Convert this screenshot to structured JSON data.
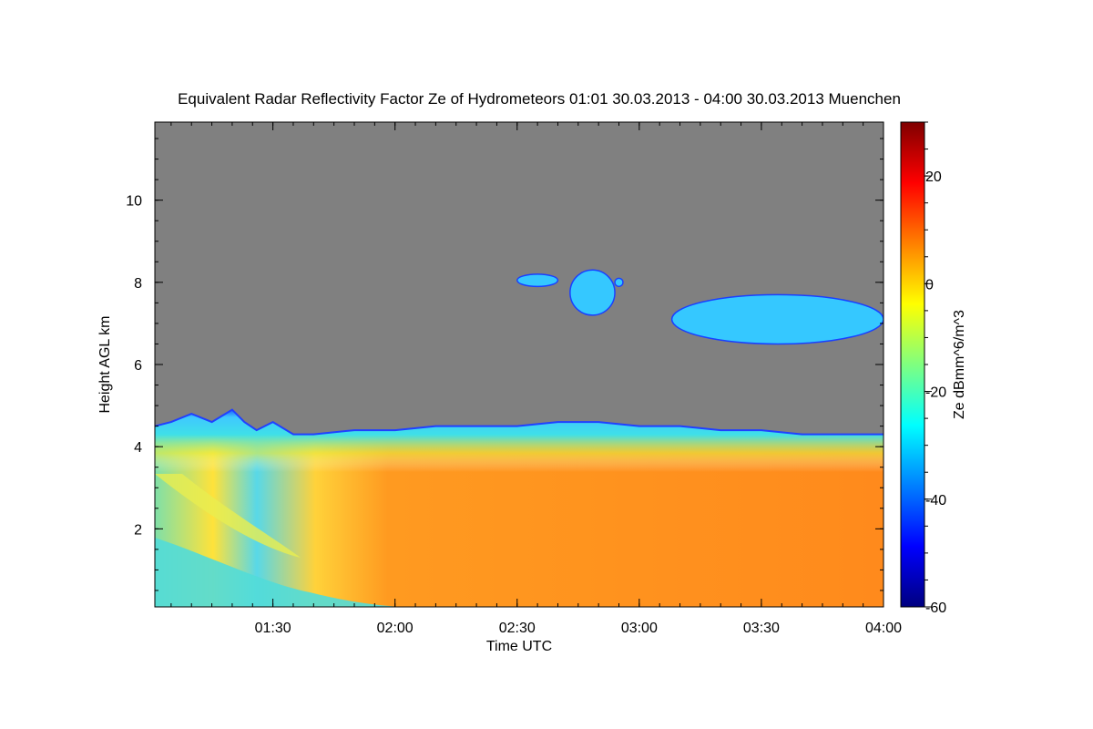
{
  "chart_data": {
    "type": "heatmap",
    "title": "Equivalent Radar Reflectivity Factor Ze of Hydrometeors   01:01 30.03.2013 - 04:00 30.03.2013 Muenchen",
    "xlabel": "Time UTC",
    "ylabel": "Height AGL km",
    "x_range_minutes": [
      61,
      240
    ],
    "x_ticks": [
      {
        "label": "01:30",
        "value": 90
      },
      {
        "label": "02:00",
        "value": 120
      },
      {
        "label": "02:30",
        "value": 150
      },
      {
        "label": "03:00",
        "value": 180
      },
      {
        "label": "03:30",
        "value": 210
      },
      {
        "label": "04:00",
        "value": 240
      }
    ],
    "ylim": [
      0.1,
      11.9
    ],
    "y_ticks": [
      {
        "label": "2",
        "value": 2
      },
      {
        "label": "4",
        "value": 4
      },
      {
        "label": "6",
        "value": 6
      },
      {
        "label": "8",
        "value": 8
      },
      {
        "label": "10",
        "value": 10
      }
    ],
    "colorbar": {
      "label": "Ze dBmm^6/m^3",
      "range": [
        -60,
        30
      ],
      "ticks": [
        {
          "label": "20",
          "value": 20
        },
        {
          "label": "0",
          "value": 0
        },
        {
          "label": "-20",
          "value": -20
        },
        {
          "label": "-40",
          "value": -40
        },
        {
          "label": "-60",
          "value": -60
        }
      ]
    },
    "background_color": "#808080",
    "cloud_top": {
      "time_min": [
        61,
        65,
        70,
        75,
        80,
        83,
        86,
        90,
        95,
        100,
        110,
        120,
        130,
        140,
        150,
        160,
        170,
        180,
        190,
        200,
        210,
        220,
        230,
        240
      ],
      "height_km": [
        4.5,
        4.6,
        4.8,
        4.6,
        4.9,
        4.6,
        4.4,
        4.6,
        4.3,
        4.3,
        4.4,
        4.4,
        4.5,
        4.5,
        4.5,
        4.6,
        4.6,
        4.5,
        4.5,
        4.4,
        4.4,
        4.3,
        4.3,
        4.3
      ]
    },
    "upper_cloud_patches": [
      {
        "t0": 150,
        "t1": 160,
        "h0": 7.9,
        "h1": 8.2
      },
      {
        "t0": 163,
        "t1": 174,
        "h0": 7.2,
        "h1": 8.3
      },
      {
        "t0": 174,
        "t1": 176,
        "h0": 7.9,
        "h1": 8.1
      },
      {
        "t0": 188,
        "t1": 240,
        "h0": 6.5,
        "h1": 7.7
      }
    ]
  }
}
